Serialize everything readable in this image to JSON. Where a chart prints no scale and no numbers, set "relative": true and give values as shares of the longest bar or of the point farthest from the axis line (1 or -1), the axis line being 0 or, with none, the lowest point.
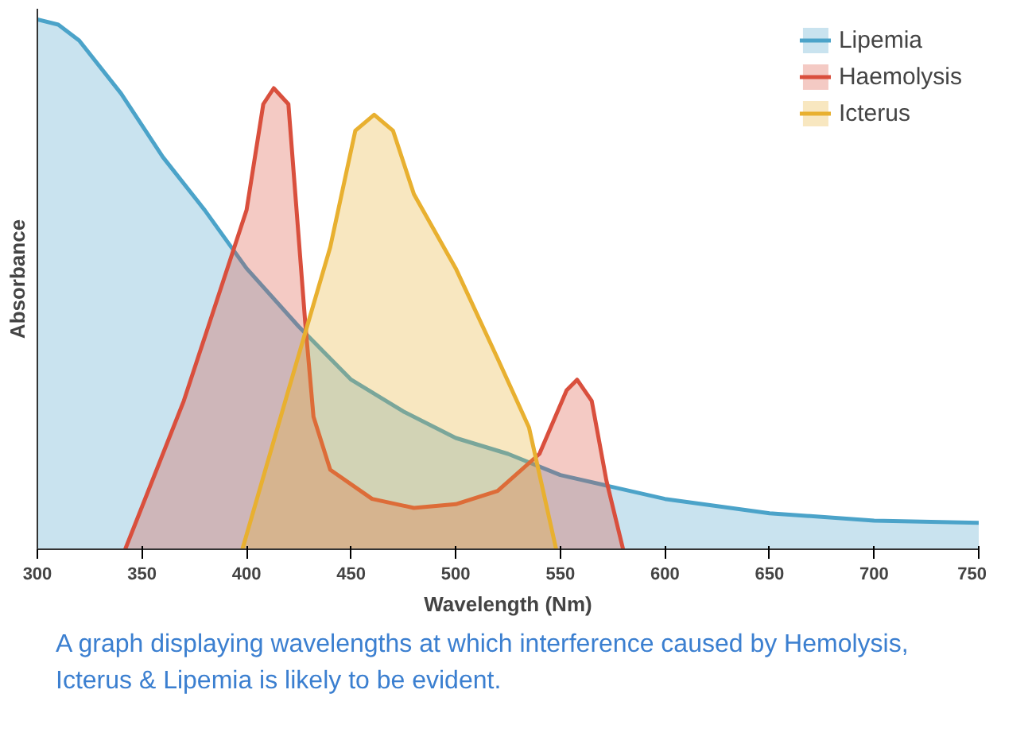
{
  "chart_data": {
    "type": "area",
    "relative": true,
    "xlabel": "Wavelength (Nm)",
    "ylabel": "Absorbance",
    "xlim": [
      300,
      750
    ],
    "xticks": [
      300,
      350,
      400,
      450,
      500,
      550,
      600,
      650,
      700,
      750
    ],
    "grid": false,
    "legend": "top right",
    "tick_labels": "x",
    "annotations": [
      "A graph displaying wavelengths at which interference caused by Hemolysis, Icterus & Lipemia is likely to be evident."
    ],
    "series": [
      {
        "name": "Lipemia",
        "color": "#4ba3c9",
        "x": [
          300,
          310,
          320,
          340,
          360,
          380,
          400,
          425,
          450,
          475,
          500,
          525,
          550,
          600,
          650,
          700,
          750
        ],
        "values": [
          1.0,
          0.99,
          0.96,
          0.86,
          0.74,
          0.64,
          0.53,
          0.42,
          0.32,
          0.26,
          0.21,
          0.18,
          0.14,
          0.095,
          0.068,
          0.054,
          0.05
        ]
      },
      {
        "name": "Haemolysis",
        "color": "#d94f3d",
        "x": [
          342,
          370,
          400,
          408,
          413,
          420,
          428,
          432,
          440,
          460,
          480,
          500,
          520,
          540,
          553,
          558,
          565,
          572,
          580
        ],
        "values": [
          0,
          0.28,
          0.64,
          0.84,
          0.87,
          0.84,
          0.43,
          0.25,
          0.15,
          0.095,
          0.078,
          0.085,
          0.11,
          0.18,
          0.3,
          0.32,
          0.28,
          0.13,
          0
        ]
      },
      {
        "name": "Icterus",
        "color": "#e8b030",
        "x": [
          398,
          420,
          440,
          452,
          461,
          470,
          480,
          500,
          520,
          535,
          548
        ],
        "values": [
          0,
          0.3,
          0.57,
          0.79,
          0.82,
          0.79,
          0.67,
          0.53,
          0.36,
          0.23,
          0
        ]
      }
    ]
  }
}
